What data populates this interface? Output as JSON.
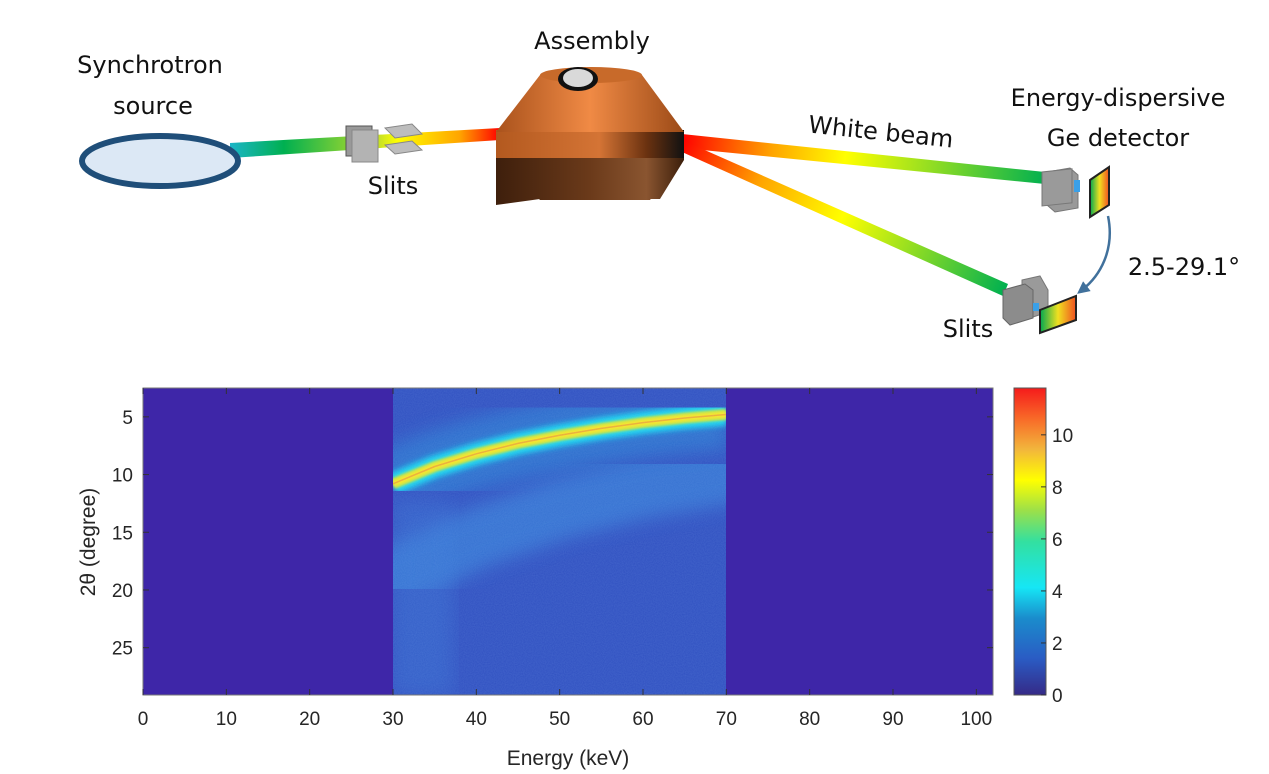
{
  "diagram": {
    "labels": {
      "source": [
        "Synchrotron",
        "source"
      ],
      "slits_in": "Slits",
      "assembly": "Assembly",
      "white_beam": "White beam",
      "detector": [
        "Energy-dispersive",
        "Ge detector"
      ],
      "angle_range": "2.5-29.1°",
      "slits_out": "Slits"
    },
    "colors": {
      "source_ring": "#1f4e79",
      "source_fill": "#dce8f5",
      "assembly_copper": "#c8652a",
      "arrow": "#41719c",
      "slit_gray": "#a6a6a6"
    },
    "beam_gradient": [
      "#1cb5c8",
      "#00b050",
      "#c5e026",
      "#ffff00",
      "#ffa500",
      "#ff0000"
    ]
  },
  "chart_data": {
    "type": "heatmap",
    "title": "",
    "xlabel": "Energy (keV)",
    "ylabel": "2θ (degree)",
    "xlim": [
      0,
      102
    ],
    "ylim": [
      2.5,
      29.1
    ],
    "y_reversed": true,
    "xticks": [
      0,
      10,
      20,
      30,
      40,
      50,
      60,
      70,
      80,
      90,
      100
    ],
    "yticks": [
      5,
      10,
      15,
      20,
      25
    ],
    "colorbar": {
      "colormap": "parula/jet",
      "range": [
        0,
        11.8
      ],
      "ticks": [
        0,
        2,
        4,
        6,
        8,
        10
      ]
    },
    "data_window_keV": [
      30,
      70
    ],
    "background_value": 0.3,
    "features": [
      {
        "name": "primary diffraction arc (E·sinθ = const)",
        "peak_intensity": 10.5,
        "points": [
          [
            30,
            10.8
          ],
          [
            35,
            9.3
          ],
          [
            40,
            8.2
          ],
          [
            45,
            7.3
          ],
          [
            50,
            6.6
          ],
          [
            55,
            6.0
          ],
          [
            60,
            5.5
          ],
          [
            65,
            5.1
          ],
          [
            70,
            4.8
          ]
        ]
      },
      {
        "name": "secondary diffuse arc",
        "peak_intensity": 2.6,
        "points": [
          [
            30,
            19.0
          ],
          [
            40,
            15.5
          ],
          [
            50,
            13.0
          ],
          [
            60,
            11.2
          ],
          [
            70,
            10.0
          ]
        ]
      }
    ]
  }
}
